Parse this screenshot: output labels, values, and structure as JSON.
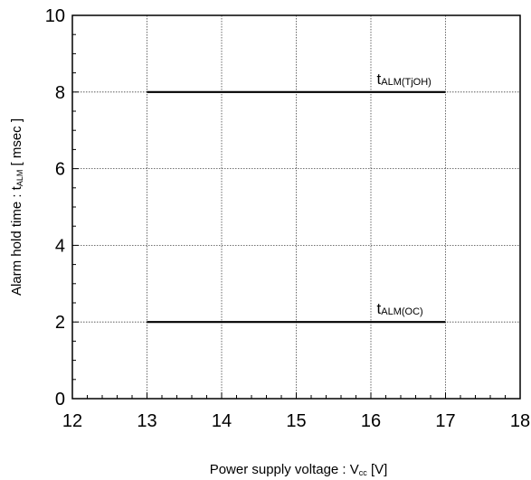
{
  "chart_data": {
    "type": "line",
    "title": "",
    "xlabel": {
      "main": "Power supply voltage : V",
      "sub": "cc",
      "tail": " [V]"
    },
    "ylabel": {
      "main": "Alarm hold time : t",
      "sub": "ALM",
      "tail": " [ msec ]"
    },
    "xlim": [
      12,
      18
    ],
    "ylim": [
      0,
      10
    ],
    "x_ticks": [
      12,
      13,
      14,
      15,
      16,
      17,
      18
    ],
    "y_ticks": [
      0,
      2,
      4,
      6,
      8,
      10
    ],
    "grid": true,
    "series": [
      {
        "name": "tALM(TjOH)",
        "label_main": "t",
        "label_sub": "ALM(TjOH)",
        "x": [
          13,
          17
        ],
        "y": [
          8,
          8
        ]
      },
      {
        "name": "tALM(OC)",
        "label_main": "t",
        "label_sub": "ALM(OC)",
        "x": [
          13,
          17
        ],
        "y": [
          2,
          2
        ]
      }
    ]
  }
}
